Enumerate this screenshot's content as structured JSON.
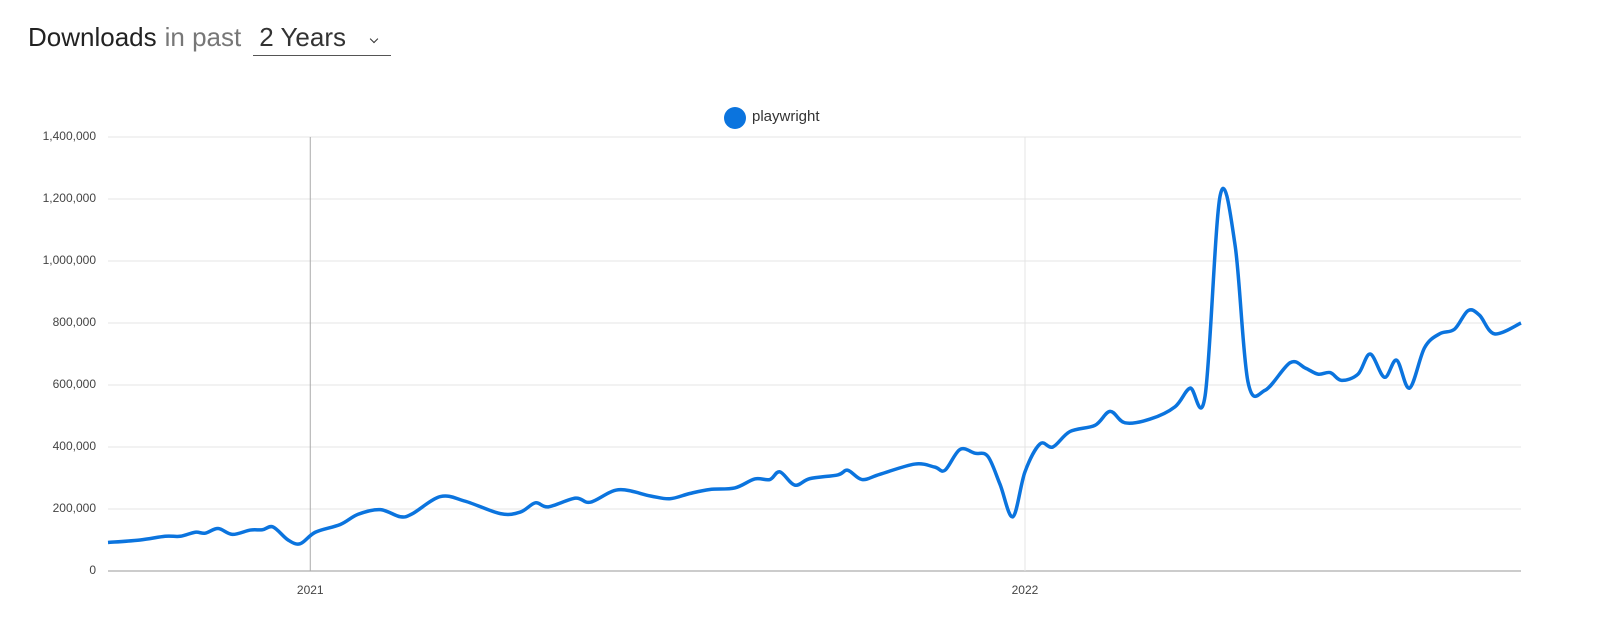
{
  "header": {
    "title": "Downloads",
    "qualifier": "in past",
    "period": "2 Years"
  },
  "chart_data": {
    "type": "line",
    "x": [
      2020.717,
      2020.762,
      2020.797,
      2020.818,
      2020.839,
      2020.853,
      2020.871,
      2020.891,
      2020.916,
      2020.933,
      2020.948,
      2020.969,
      2020.986,
      2021.007,
      2021.042,
      2021.067,
      2021.098,
      2021.126,
      2021.143,
      2021.182,
      2021.217,
      2021.266,
      2021.294,
      2021.315,
      2021.333,
      2021.371,
      2021.392,
      2021.431,
      2021.476,
      2021.503,
      2021.531,
      2021.559,
      2021.594,
      2021.622,
      2021.643,
      2021.657,
      2021.678,
      2021.699,
      2021.738,
      2021.752,
      2021.772,
      2021.797,
      2021.846,
      2021.874,
      2021.888,
      2021.909,
      2021.93,
      2021.948,
      2021.965,
      2021.983,
      2022.0,
      2022.021,
      2022.039,
      2022.063,
      2022.098,
      2022.119,
      2022.14,
      2022.175,
      2022.21,
      2022.231,
      2022.252,
      2022.273,
      2022.294,
      2022.312,
      2022.336,
      2022.371,
      2022.392,
      2022.41,
      2022.427,
      2022.443,
      2022.466,
      2022.483,
      2022.503,
      2022.52,
      2022.538,
      2022.559,
      2022.58,
      2022.601,
      2022.62,
      2022.636,
      2022.657,
      2022.694
    ],
    "series": [
      {
        "name": "playwright",
        "color": "#0b74de",
        "values": [
          92000,
          100000,
          112000,
          112000,
          125000,
          122000,
          137000,
          118000,
          132000,
          133000,
          142000,
          100000,
          88000,
          125000,
          150000,
          183000,
          198000,
          175000,
          185000,
          240000,
          225000,
          185000,
          190000,
          220000,
          207000,
          235000,
          222000,
          262000,
          242000,
          233000,
          250000,
          263000,
          268000,
          297000,
          295000,
          320000,
          277000,
          298000,
          310000,
          325000,
          295000,
          312000,
          345000,
          335000,
          325000,
          392000,
          380000,
          370000,
          280000,
          175000,
          320000,
          410000,
          400000,
          450000,
          470000,
          515000,
          478000,
          490000,
          530000,
          590000,
          565000,
          1210000,
          1050000,
          610000,
          583000,
          672000,
          655000,
          635000,
          640000,
          615000,
          635000,
          700000,
          625000,
          680000,
          590000,
          720000,
          765000,
          780000,
          840000,
          825000,
          765000,
          800000
        ]
      }
    ],
    "xlim": [
      2020.717,
      2022.694
    ],
    "xticks": [
      2021,
      2022
    ],
    "ylim": [
      0,
      1400000
    ],
    "yticks": [
      0,
      {
        "value": 200000,
        "label": "200,000"
      },
      {
        "value": 400000,
        "label": "400,000"
      },
      {
        "value": 600000,
        "label": "600,000"
      },
      {
        "value": 800000,
        "label": "800,000"
      },
      {
        "value": 1000000,
        "label": "1,000,000"
      },
      {
        "value": 1200000,
        "label": "1,200,000"
      },
      {
        "value": 1400000,
        "label": "1,400,000"
      }
    ],
    "grid": true,
    "legend": "top"
  }
}
